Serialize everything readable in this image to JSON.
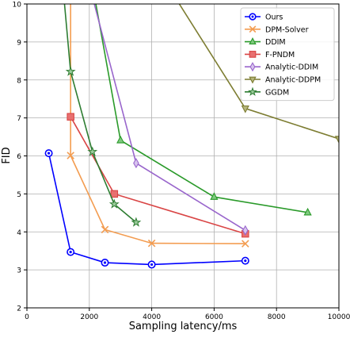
{
  "chart_data": {
    "type": "line",
    "xlabel": "Sampling latency/ms",
    "ylabel": "FID",
    "xlim": [
      0,
      10000
    ],
    "ylim": [
      2,
      10
    ],
    "x_ticks": [
      0,
      2000,
      4000,
      6000,
      8000,
      10000
    ],
    "y_ticks": [
      2,
      3,
      4,
      5,
      6,
      7,
      8,
      9,
      10
    ],
    "grid": true,
    "legend_position": "top-right",
    "series": [
      {
        "name": "Ours",
        "color": "#0000ff",
        "marker": "circle-dot",
        "points": [
          [
            700,
            6.07
          ],
          [
            1400,
            3.47
          ],
          [
            2500,
            3.19
          ],
          [
            4000,
            3.14
          ],
          [
            7000,
            3.24
          ]
        ]
      },
      {
        "name": "DPM-Solver",
        "color": "#f39c50",
        "marker": "x",
        "points": [
          [
            1400,
            10.5
          ],
          [
            1400,
            6.01
          ],
          [
            2500,
            4.06
          ],
          [
            4000,
            3.7
          ],
          [
            7000,
            3.69
          ]
        ]
      },
      {
        "name": "DDIM",
        "color": "#2a9a2a",
        "marker": "triangle-up",
        "points": [
          [
            2100,
            10.5
          ],
          [
            3000,
            6.41
          ],
          [
            6000,
            4.92
          ],
          [
            9000,
            4.51
          ]
        ]
      },
      {
        "name": "F-PNDM",
        "color": "#d94545",
        "marker": "square",
        "points": [
          [
            1400,
            7.03
          ],
          [
            2800,
            5.0
          ],
          [
            7000,
            3.95
          ]
        ]
      },
      {
        "name": "Analytic-DDIM",
        "color": "#9966cc",
        "marker": "diamond",
        "points": [
          [
            2000,
            10.5
          ],
          [
            3500,
            5.81
          ],
          [
            7000,
            4.04
          ]
        ]
      },
      {
        "name": "Analytic-DDPM",
        "color": "#7d7d32",
        "marker": "triangle-down",
        "points": [
          [
            4500,
            10.5
          ],
          [
            7000,
            7.25
          ],
          [
            10000,
            6.45
          ]
        ]
      },
      {
        "name": "GGDM",
        "color": "#2e7d32",
        "marker": "star",
        "points": [
          [
            1150,
            10.5
          ],
          [
            1400,
            8.22
          ],
          [
            2100,
            6.11
          ],
          [
            2800,
            4.73
          ],
          [
            3500,
            4.25
          ]
        ]
      }
    ]
  }
}
